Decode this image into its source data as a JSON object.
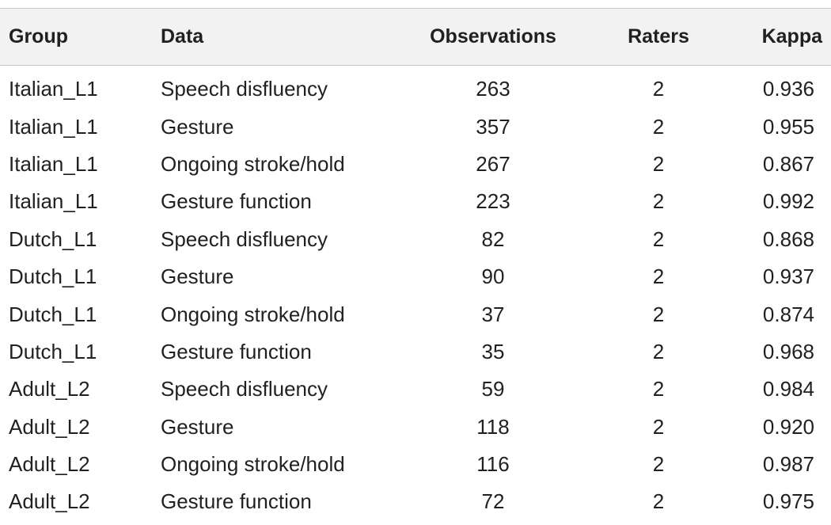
{
  "table": {
    "headers": {
      "group": "Group",
      "data": "Data",
      "observations": "Observations",
      "raters": "Raters",
      "kappa": "Kappa"
    },
    "rows": [
      {
        "group": "Italian_L1",
        "data": "Speech disfluency",
        "observations": "263",
        "raters": "2",
        "kappa": "0.936"
      },
      {
        "group": "Italian_L1",
        "data": "Gesture",
        "observations": "357",
        "raters": "2",
        "kappa": "0.955"
      },
      {
        "group": "Italian_L1",
        "data": "Ongoing stroke/hold",
        "observations": "267",
        "raters": "2",
        "kappa": "0.867"
      },
      {
        "group": "Italian_L1",
        "data": "Gesture function",
        "observations": "223",
        "raters": "2",
        "kappa": "0.992"
      },
      {
        "group": "Dutch_L1",
        "data": "Speech disfluency",
        "observations": "82",
        "raters": "2",
        "kappa": "0.868"
      },
      {
        "group": "Dutch_L1",
        "data": "Gesture",
        "observations": "90",
        "raters": "2",
        "kappa": "0.937"
      },
      {
        "group": "Dutch_L1",
        "data": "Ongoing stroke/hold",
        "observations": "37",
        "raters": "2",
        "kappa": "0.874"
      },
      {
        "group": "Dutch_L1",
        "data": "Gesture function",
        "observations": "35",
        "raters": "2",
        "kappa": "0.968"
      },
      {
        "group": "Adult_L2",
        "data": "Speech disfluency",
        "observations": "59",
        "raters": "2",
        "kappa": "0.984"
      },
      {
        "group": "Adult_L2",
        "data": "Gesture",
        "observations": "118",
        "raters": "2",
        "kappa": "0.920"
      },
      {
        "group": "Adult_L2",
        "data": "Ongoing stroke/hold",
        "observations": "116",
        "raters": "2",
        "kappa": "0.987"
      },
      {
        "group": "Adult_L2",
        "data": "Gesture function",
        "observations": "72",
        "raters": "2",
        "kappa": "0.975"
      }
    ]
  }
}
